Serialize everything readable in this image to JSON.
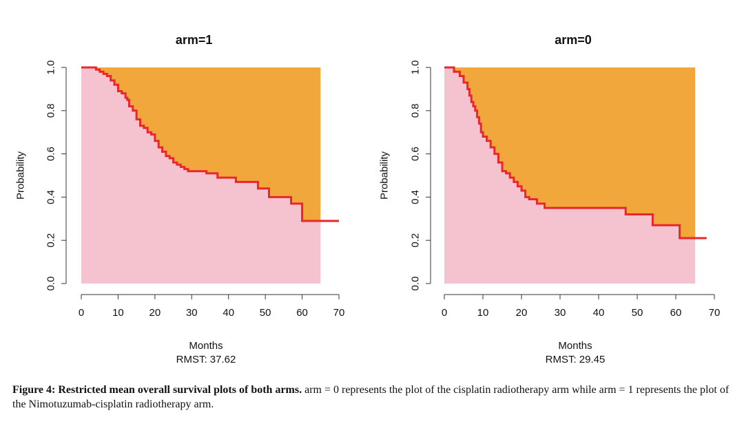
{
  "chart_data": [
    {
      "type": "line",
      "title": "arm=1",
      "xlabel": "Months",
      "ylabel": "Probability",
      "rmst_label": "RMST: 37.62",
      "xlim": [
        0,
        70
      ],
      "ylim": [
        0,
        1
      ],
      "xticks": [
        "0",
        "10",
        "20",
        "30",
        "40",
        "50",
        "60",
        "70"
      ],
      "yticks": [
        "0.0",
        "0.2",
        "0.4",
        "0.6",
        "0.8",
        "1.0"
      ],
      "tau": 65,
      "colors": {
        "area_under": "#f5c3cf",
        "area_over": "#f1a73b",
        "curve": "#e8262b"
      },
      "series": [
        {
          "name": "survival",
          "x": [
            0,
            3,
            4,
            5,
            6,
            7,
            8,
            9,
            10,
            11,
            12,
            12.5,
            13,
            14,
            15,
            16,
            17,
            18,
            19,
            20,
            21,
            22,
            23,
            24,
            25,
            26,
            27,
            28,
            29,
            32,
            34,
            35,
            37,
            41,
            42,
            45,
            48,
            51,
            52,
            54,
            57,
            58,
            60,
            65,
            70
          ],
          "y": [
            1.0,
            1.0,
            0.99,
            0.98,
            0.97,
            0.96,
            0.94,
            0.92,
            0.89,
            0.88,
            0.86,
            0.85,
            0.82,
            0.8,
            0.76,
            0.73,
            0.72,
            0.7,
            0.69,
            0.66,
            0.63,
            0.61,
            0.59,
            0.58,
            0.56,
            0.55,
            0.54,
            0.53,
            0.52,
            0.52,
            0.51,
            0.51,
            0.49,
            0.49,
            0.47,
            0.47,
            0.44,
            0.4,
            0.4,
            0.4,
            0.37,
            0.37,
            0.29,
            0.29,
            0.29
          ]
        }
      ]
    },
    {
      "type": "line",
      "title": "arm=0",
      "xlabel": "Months",
      "ylabel": "Probability",
      "rmst_label": "RMST: 29.45",
      "xlim": [
        0,
        70
      ],
      "ylim": [
        0,
        1
      ],
      "xticks": [
        "0",
        "10",
        "20",
        "30",
        "40",
        "50",
        "60",
        "70"
      ],
      "yticks": [
        "0.0",
        "0.2",
        "0.4",
        "0.6",
        "0.8",
        "1.0"
      ],
      "tau": 65,
      "colors": {
        "area_under": "#f5c3cf",
        "area_over": "#f1a73b",
        "curve": "#e8262b"
      },
      "series": [
        {
          "name": "survival",
          "x": [
            0,
            1.5,
            2.5,
            4,
            5,
            6,
            6.5,
            7,
            7.5,
            8,
            8.5,
            9,
            9.5,
            10,
            11,
            12,
            13,
            14,
            15,
            16,
            17,
            18,
            19,
            20,
            21,
            22,
            23,
            24,
            26,
            27,
            28,
            32,
            38,
            41,
            43,
            47,
            50,
            54,
            57,
            59,
            61,
            65,
            68
          ],
          "y": [
            1.0,
            1.0,
            0.98,
            0.96,
            0.93,
            0.9,
            0.87,
            0.84,
            0.82,
            0.8,
            0.77,
            0.74,
            0.7,
            0.68,
            0.66,
            0.63,
            0.6,
            0.56,
            0.52,
            0.51,
            0.49,
            0.47,
            0.45,
            0.43,
            0.4,
            0.39,
            0.39,
            0.37,
            0.35,
            0.35,
            0.35,
            0.35,
            0.35,
            0.35,
            0.35,
            0.32,
            0.32,
            0.27,
            0.27,
            0.27,
            0.21,
            0.21,
            0.21
          ]
        }
      ]
    }
  ],
  "caption": {
    "bold": "Figure 4: Restricted mean overall survival plots of both arms.",
    "text": " arm = 0 represents the plot of the cisplatin radiotherapy arm while arm = 1 represents the plot of the Nimotuzumab-cisplatin radiotherapy arm."
  }
}
